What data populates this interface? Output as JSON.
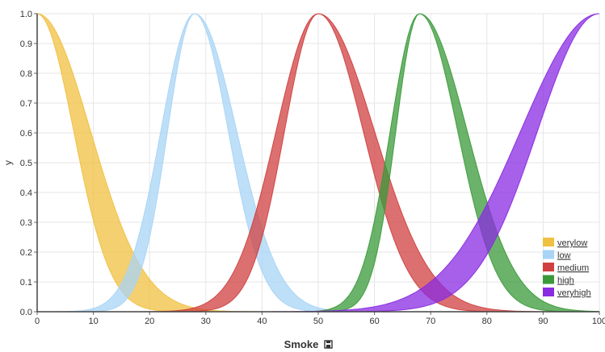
{
  "chart_data": {
    "type": "area",
    "xlabel": "Smoke",
    "ylabel": "y",
    "xlim": [
      0,
      100
    ],
    "ylim": [
      0,
      1
    ],
    "x_ticks": [
      0,
      10,
      20,
      30,
      40,
      50,
      60,
      70,
      80,
      90,
      100
    ],
    "y_ticks": [
      0.0,
      0.1,
      0.2,
      0.3,
      0.4,
      0.5,
      0.6,
      0.7,
      0.8,
      0.9,
      1.0
    ],
    "y_tick_labels": [
      "0.0",
      "0.1",
      "0.2",
      "0.3",
      "0.4",
      "0.5",
      "0.6",
      "0.7",
      "0.8",
      "0.9",
      "1.0"
    ],
    "grid": true,
    "legend_position": "bottom-right",
    "series": [
      {
        "name": "verylow",
        "color": "#f0c040",
        "peak": 0,
        "sigma_left": 7,
        "sigma_right": 9.5,
        "sigma_left_inner": 7,
        "sigma_right_inner": 6.5
      },
      {
        "name": "low",
        "color": "#a8d4f5",
        "peak": 28,
        "sigma_left": 6,
        "sigma_right": 7.5,
        "sigma_left_inner": 4.8,
        "sigma_right_inner": 6
      },
      {
        "name": "medium",
        "color": "#d04040",
        "peak": 50,
        "sigma_left": 7.5,
        "sigma_right": 10,
        "sigma_left_inner": 6,
        "sigma_right_inner": 8
      },
      {
        "name": "high",
        "color": "#3a9a3a",
        "peak": 68,
        "sigma_left": 5.2,
        "sigma_right": 8.5,
        "sigma_left_inner": 4.2,
        "sigma_right_inner": 6.8
      },
      {
        "name": "veryhigh",
        "color": "#8a2be2",
        "peak": 100,
        "sigma_left": 14,
        "sigma_right": 14,
        "sigma_left_inner": 11,
        "sigma_right_inner": 11
      }
    ]
  }
}
